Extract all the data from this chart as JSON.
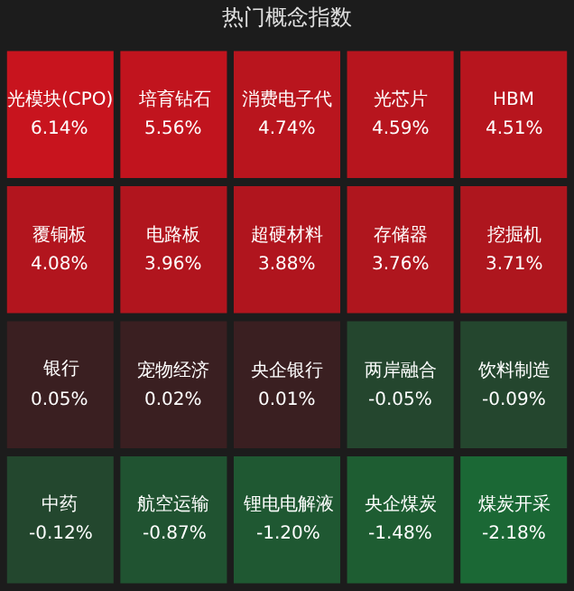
{
  "chart_data": {
    "type": "other",
    "title": "热门概念指数",
    "categories": [
      "光模块(CPO)",
      "培育钻石",
      "消费电子代",
      "光芯片",
      "HBM",
      "覆铜板",
      "电路板",
      "超硬材料",
      "存储器",
      "挖掘机",
      "银行",
      "宠物经济",
      "央企银行",
      "两岸融合",
      "饮料制造",
      "中药",
      "航空运输",
      "锂电电解液",
      "央企煤炭",
      "煤炭开采"
    ],
    "values": [
      6.14,
      5.56,
      4.74,
      4.59,
      4.51,
      4.08,
      3.96,
      3.88,
      3.76,
      3.71,
      0.05,
      0.02,
      0.01,
      -0.05,
      -0.09,
      -0.12,
      -0.87,
      -1.2,
      -1.48,
      -2.18
    ],
    "value_labels": [
      "6.14%",
      "5.56%",
      "4.74%",
      "4.59%",
      "4.51%",
      "4.08%",
      "3.96%",
      "3.88%",
      "3.76%",
      "3.71%",
      "0.05%",
      "0.02%",
      "0.01%",
      "-0.05%",
      "-0.09%",
      "-0.12%",
      "-0.87%",
      "-1.20%",
      "-1.48%",
      "-2.18%"
    ]
  }
}
